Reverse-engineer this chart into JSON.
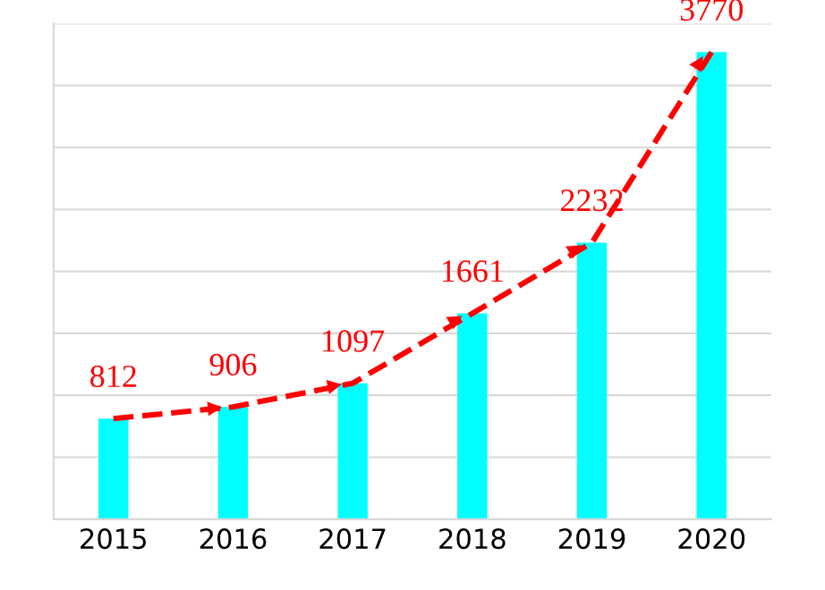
{
  "chart_data": {
    "type": "bar",
    "categories": [
      "2015",
      "2016",
      "2017",
      "2018",
      "2019",
      "2020"
    ],
    "series": [
      {
        "color": "#00ffff",
        "values": [
          812,
          906,
          1097,
          1661,
          2232,
          3770
        ],
        "value_labels": [
          "812",
          "906",
          "1097",
          "1661",
          "2232",
          "3770"
        ]
      },
      {
        "type": "line",
        "color": "#ff0000",
        "values": [
          812,
          906,
          1097,
          1661,
          2232,
          3770
        ]
      }
    ],
    "line_style": "dashed",
    "marker": "none",
    "ylim": [
      0,
      4000
    ],
    "yticks": [
      {
        "value": 0,
        "label": null
      },
      {
        "value": 500,
        "label": null
      },
      {
        "value": 1000,
        "label": null
      },
      {
        "value": 1500,
        "label": null
      },
      {
        "value": 2000,
        "label": null
      },
      {
        "value": 2500,
        "label": null
      },
      {
        "value": 3000,
        "label": null
      },
      {
        "value": 3500,
        "label": null
      },
      {
        "value": 4000,
        "label": null
      }
    ],
    "grid": "y",
    "tick_labels": "x",
    "legend": false
  }
}
